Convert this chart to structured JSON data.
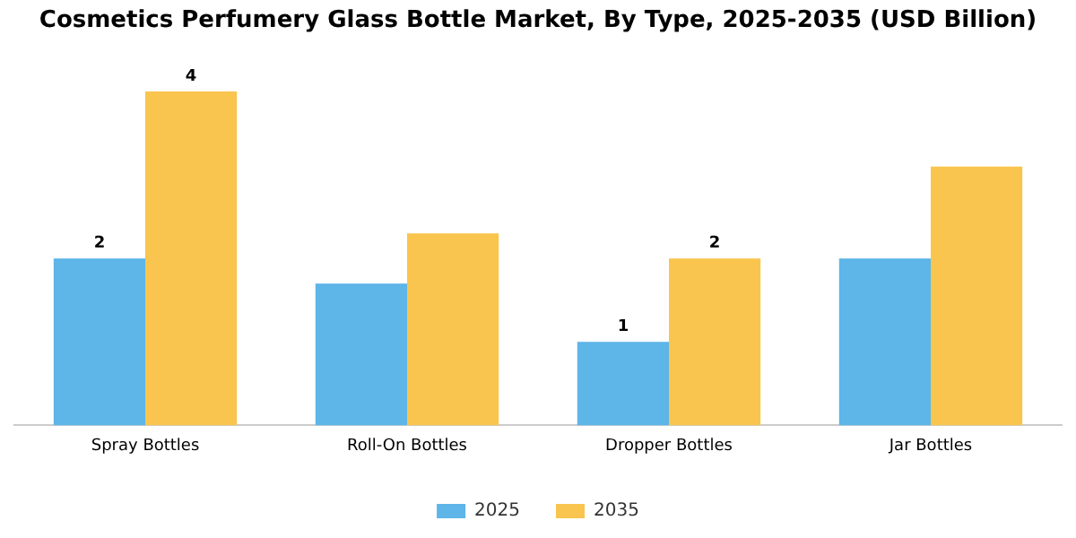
{
  "chart_data": {
    "type": "bar",
    "title": "Cosmetics Perfumery Glass Bottle Market, By Type, 2025-2035 (USD Billion)",
    "categories": [
      "Spray Bottles",
      "Roll-On Bottles",
      "Dropper Bottles",
      "Jar Bottles"
    ],
    "legend": "bottom",
    "grid": false,
    "series": [
      {
        "name": "2025",
        "color": "#5db5e8",
        "values": [
          2,
          1.7,
          1,
          2
        ],
        "value_labels": [
          "2",
          null,
          "1",
          null
        ]
      },
      {
        "name": "2035",
        "color": "#f9c54e",
        "values": [
          4,
          2.3,
          2,
          3.1
        ],
        "value_labels": [
          "4",
          null,
          "2",
          null
        ]
      }
    ]
  }
}
